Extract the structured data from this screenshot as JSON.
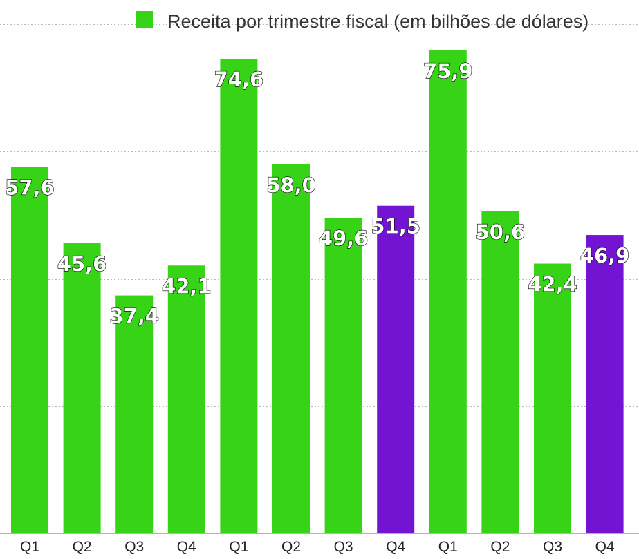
{
  "chart_data": {
    "type": "bar",
    "legend": {
      "label": "Receita por trimestre fiscal (em bilhões de dólares)",
      "color": "#36d317",
      "position": "top-right"
    },
    "categories": [
      "Q1",
      "Q2",
      "Q3",
      "Q4",
      "Q1",
      "Q2",
      "Q3",
      "Q4",
      "Q1",
      "Q2",
      "Q3",
      "Q4"
    ],
    "values": [
      57.6,
      45.6,
      37.4,
      42.1,
      74.6,
      58.0,
      49.6,
      51.5,
      75.9,
      50.6,
      42.4,
      46.9
    ],
    "value_labels": [
      "57,6",
      "45,6",
      "37,4",
      "42,1",
      "74,6",
      "58,0",
      "49,6",
      "51,5",
      "75,9",
      "50,6",
      "42,4",
      "46,9"
    ],
    "bar_colors": [
      "#36d317",
      "#36d317",
      "#36d317",
      "#36d317",
      "#36d317",
      "#36d317",
      "#36d317",
      "#7414d3",
      "#36d317",
      "#36d317",
      "#36d317",
      "#7414d3"
    ],
    "ylim": [
      0,
      75.9
    ],
    "gridlines": [
      20,
      40,
      60,
      80
    ],
    "grid": true
  }
}
